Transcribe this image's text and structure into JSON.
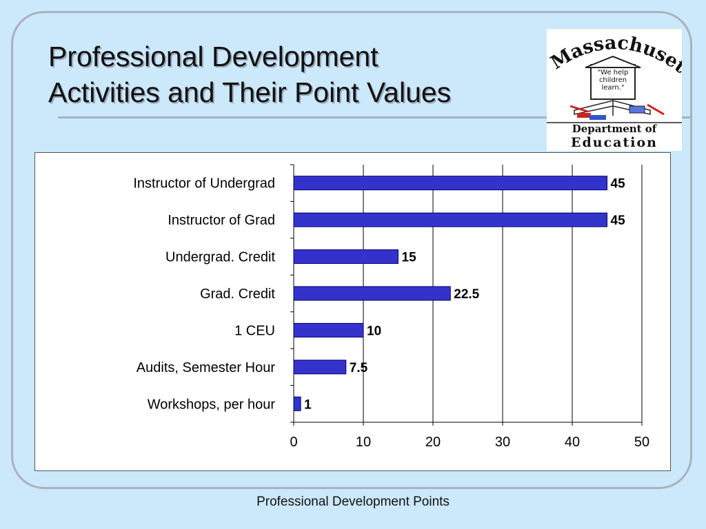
{
  "slide": {
    "title_line1": "Professional Development",
    "title_line2": "Activities and Their Point Values",
    "footer": "Professional Development Points"
  },
  "logo": {
    "state": "Massachusetts",
    "quote_line1": "\"We help",
    "quote_line2": "children",
    "quote_line3": "learn.\"",
    "dept_line1": "Department of",
    "dept_line2": "Education",
    "icon": "schoolhouse-books-logo"
  },
  "chart_data": {
    "type": "bar",
    "orientation": "horizontal",
    "categories": [
      "Instructor of Undergrad",
      "Instructor of Grad",
      "Undergrad. Credit",
      "Grad. Credit",
      "1 CEU",
      "Audits, Semester Hour",
      "Workshops, per hour"
    ],
    "values": [
      45,
      45,
      15,
      22.5,
      10,
      7.5,
      1
    ],
    "value_labels": [
      "45",
      "45",
      "15",
      "22.5",
      "10",
      "7.5",
      "1"
    ],
    "xlim": [
      0,
      50
    ],
    "x_ticks": [
      "0",
      "10",
      "20",
      "30",
      "40",
      "50"
    ],
    "grid": "vertical",
    "bar_color": "#3333cc",
    "bar_edge_color": "#000066"
  }
}
